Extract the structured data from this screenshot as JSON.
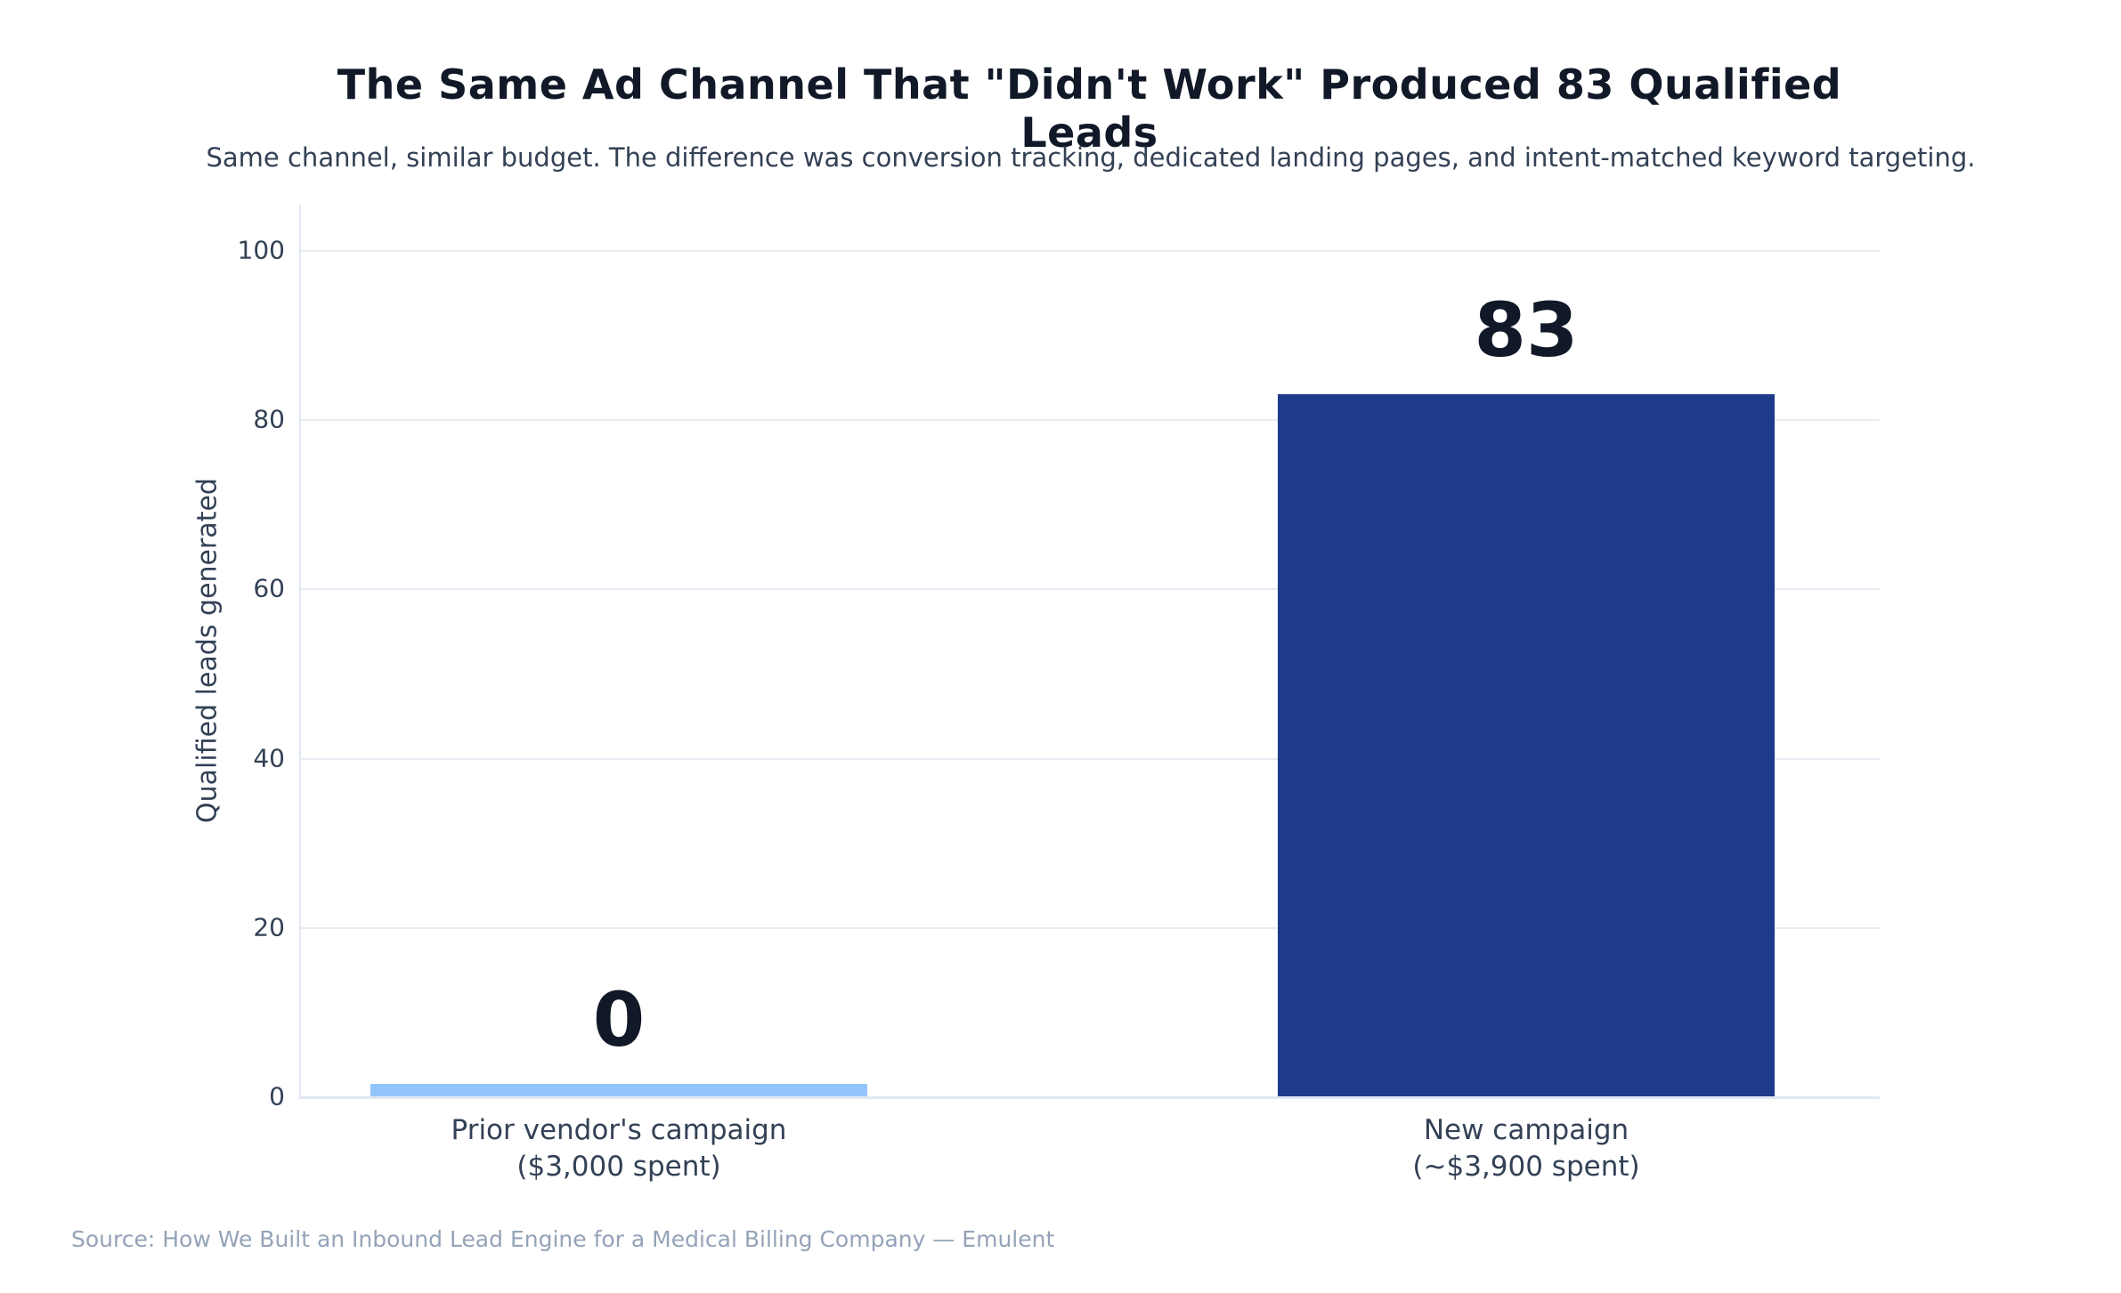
{
  "title": "The Same Ad Channel That \"Didn't Work\" Produced 83 Qualified Leads",
  "subtitle": "Same channel, similar budget. The difference was conversion tracking, dedicated landing pages, and intent-matched keyword targeting.",
  "source": "Source: How We Built an Inbound Lead Engine for a Medical Billing Company — Emulent",
  "chart_data": {
    "type": "bar",
    "title": "The Same Ad Channel That \"Didn't Work\" Produced 83 Qualified Leads",
    "subtitle": "Same channel, similar budget. The difference was conversion tracking, dedicated landing pages, and intent-matched keyword targeting.",
    "xlabel": "",
    "ylabel": "Qualified leads generated",
    "ylim": [
      0,
      100
    ],
    "yticks": [
      0,
      20,
      40,
      60,
      80,
      100
    ],
    "grid": "horizontal",
    "legend": "none",
    "categories": [
      "Prior vendor's campaign ($3,000 spent)",
      "New campaign (~$3,900 spent)"
    ],
    "values": [
      0,
      83
    ],
    "bars": [
      {
        "category_line1": "Prior vendor's campaign",
        "category_line2": "($3,000 spent)",
        "value": 0,
        "label": "0",
        "color": "#93C5FD"
      },
      {
        "category_line1": "New campaign",
        "category_line2": "(~$3,900 spent)",
        "value": 83,
        "label": "83",
        "color": "#1E3A8A"
      }
    ]
  },
  "colors": {
    "title_text": "#111827",
    "subtitle_text": "#334155",
    "axis_text": "#334155",
    "gridline": "#E7ECF3",
    "bar_prior": "#93C5FD",
    "bar_new": "#1E3A8A",
    "source_text": "#94A3B8"
  }
}
